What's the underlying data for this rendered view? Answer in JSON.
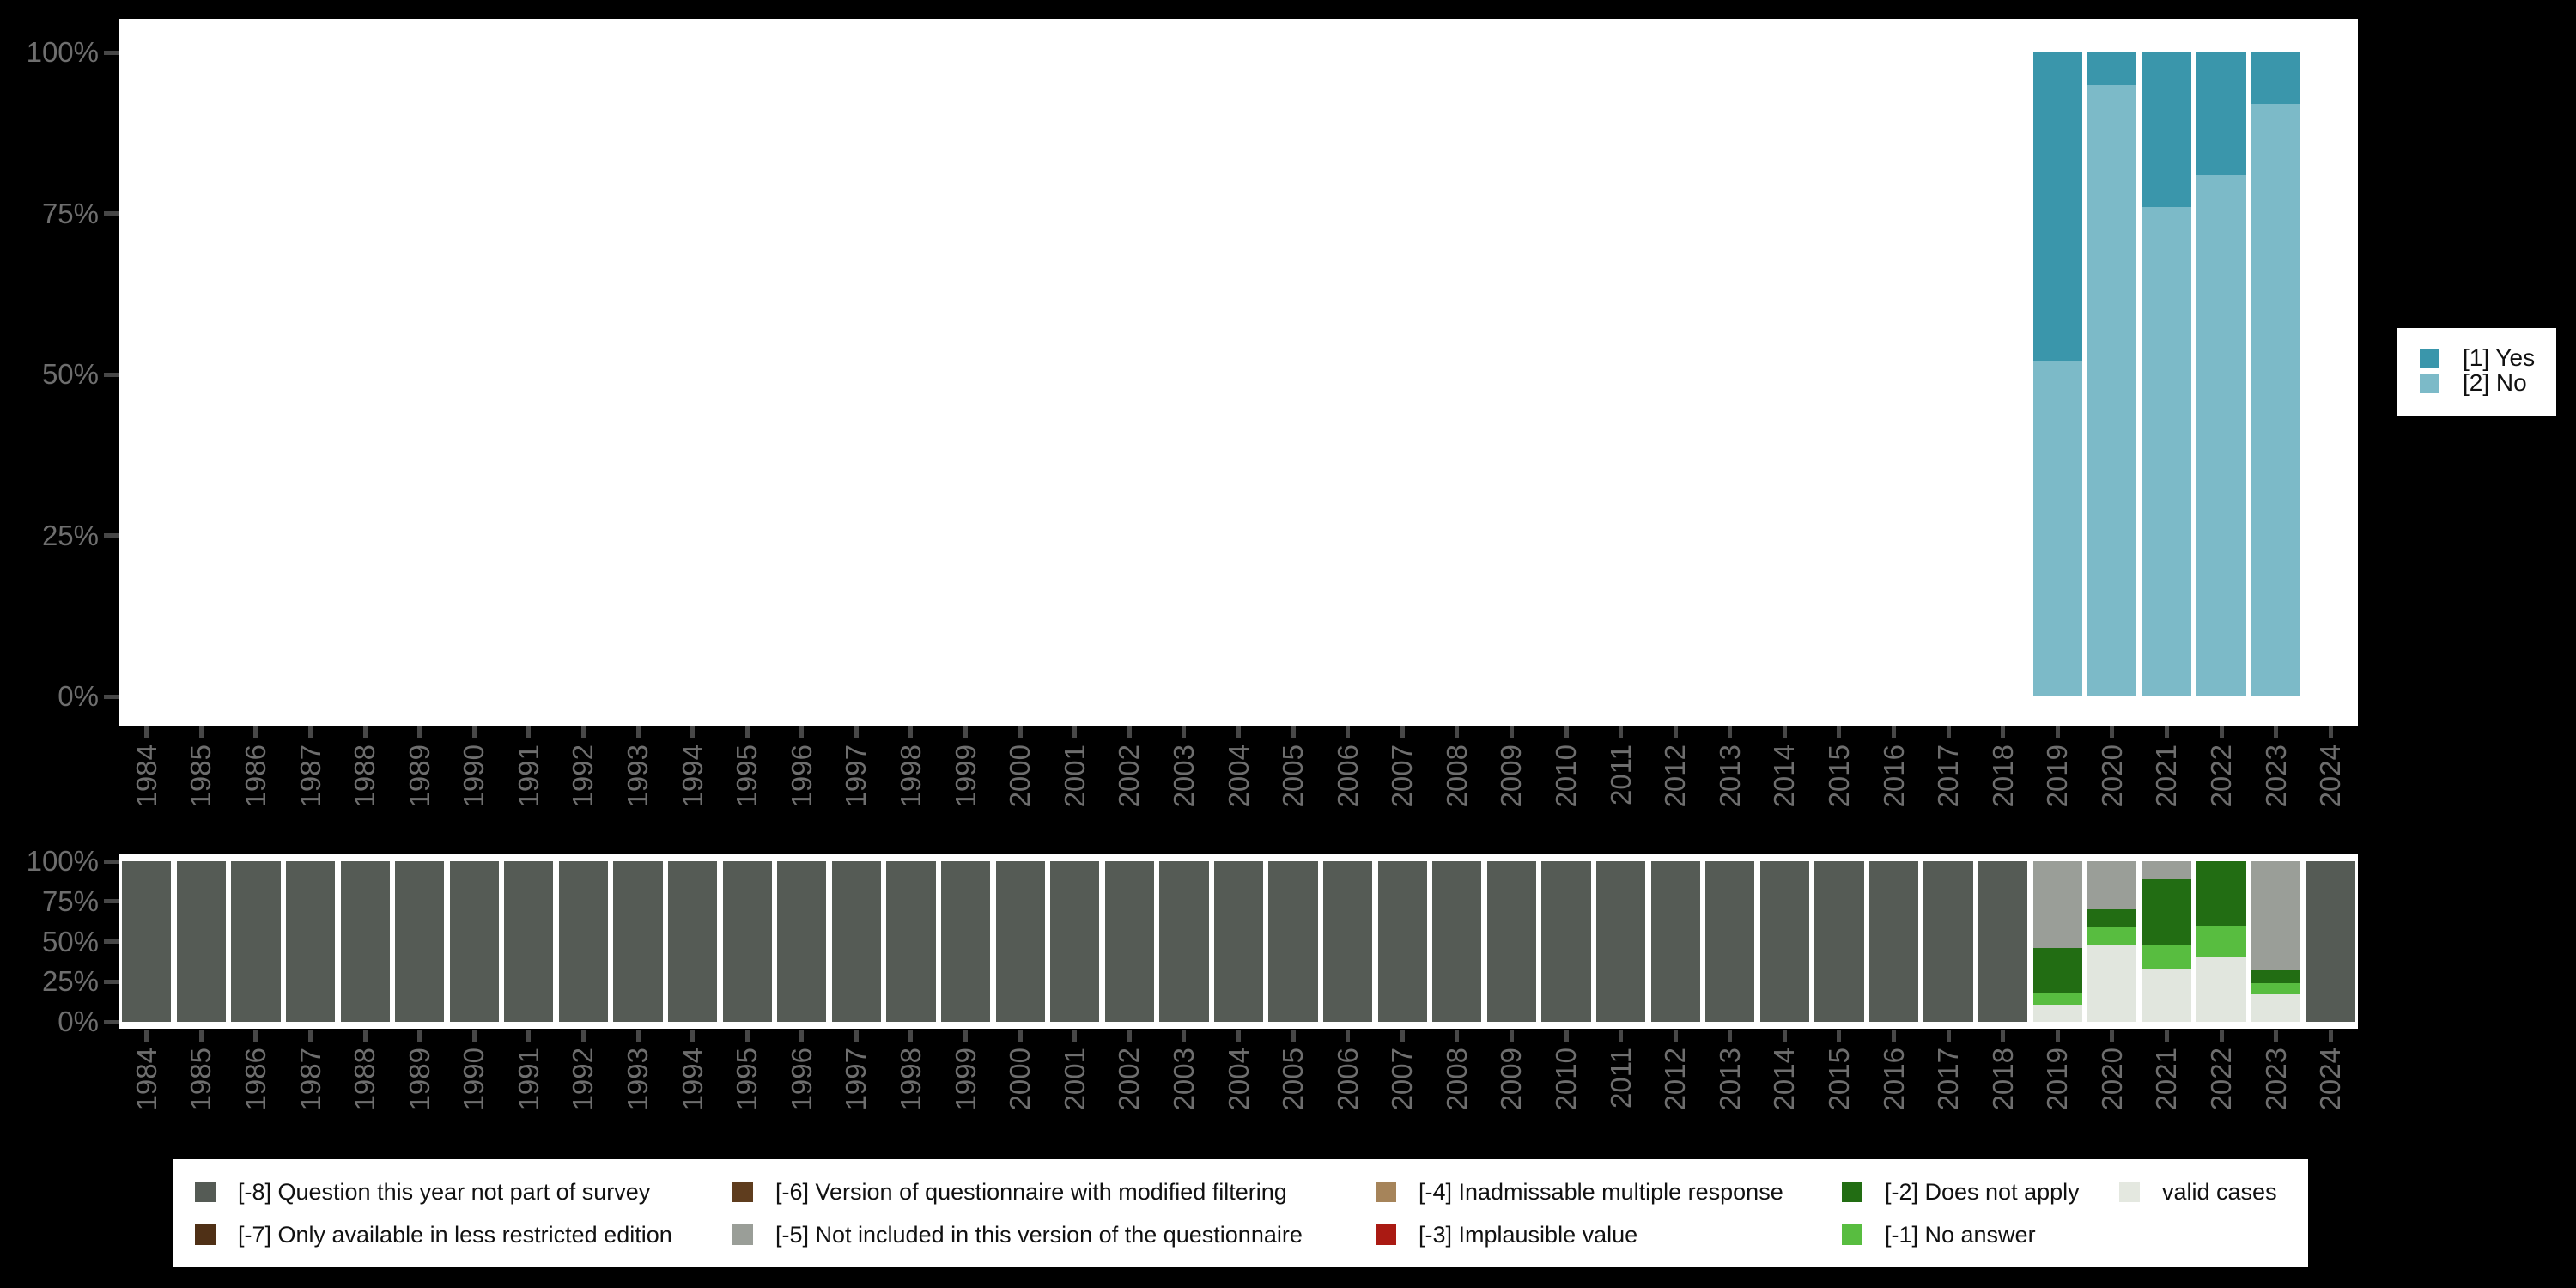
{
  "figure": {
    "background": "#000000",
    "panel_background": "#ffffff",
    "axis_text_color": "#6e6e6e",
    "tick_color": "#474747",
    "legend_background": "#ffffff",
    "legend_text_color": "#111111"
  },
  "years": [
    "1984",
    "1985",
    "1986",
    "1987",
    "1988",
    "1989",
    "1990",
    "1991",
    "1992",
    "1993",
    "1994",
    "1995",
    "1996",
    "1997",
    "1998",
    "1999",
    "2000",
    "2001",
    "2002",
    "2003",
    "2004",
    "2005",
    "2006",
    "2007",
    "2008",
    "2009",
    "2010",
    "2011",
    "2012",
    "2013",
    "2014",
    "2015",
    "2016",
    "2017",
    "2018",
    "2019",
    "2020",
    "2021",
    "2022",
    "2023",
    "2024"
  ],
  "y_axis": {
    "tick_labels": [
      "0%",
      "25%",
      "50%",
      "75%",
      "100%"
    ],
    "tick_values": [
      0,
      25,
      50,
      75,
      100
    ]
  },
  "chart_data": [
    {
      "id": "responses-by-year",
      "type": "bar",
      "stacked": true,
      "title": "",
      "xlabel": "",
      "ylabel": "",
      "ylim": [
        0,
        100
      ],
      "grid": false,
      "categories_from": "years",
      "series_bottom_to_top": [
        {
          "name": "[2] No",
          "color": "#7cbac8",
          "values": {
            "2019": 52,
            "2020": 95,
            "2021": 76,
            "2022": 81,
            "2023": 92
          }
        },
        {
          "name": "[1] Yes",
          "color": "#3a96ab",
          "values": {
            "2019": 48,
            "2020": 5,
            "2021": 24,
            "2022": 19,
            "2023": 8
          }
        }
      ],
      "legend": {
        "position": "right",
        "items": [
          {
            "label": "[1] Yes",
            "color": "#3a96ab"
          },
          {
            "label": "[2] No",
            "color": "#7cbac8"
          }
        ]
      }
    },
    {
      "id": "missing-values-by-year",
      "type": "bar",
      "stacked": true,
      "title": "",
      "xlabel": "",
      "ylabel": "",
      "ylim": [
        0,
        100
      ],
      "grid": false,
      "categories_from": "years",
      "series_bottom_to_top": [
        {
          "name": "valid cases",
          "color": "#e1e6de",
          "values": {
            "2019": 10,
            "2020": 48,
            "2021": 33,
            "2022": 40,
            "2023": 17
          }
        },
        {
          "name": "[-1] No answer",
          "color": "#58bd40",
          "values": {
            "2019": 8,
            "2020": 11,
            "2021": 15,
            "2022": 20,
            "2023": 7
          }
        },
        {
          "name": "[-2] Does not apply",
          "color": "#226d13",
          "values": {
            "2019": 28,
            "2020": 11,
            "2021": 41,
            "2022": 40,
            "2023": 8
          }
        },
        {
          "name": "[-5] Not included in this version of the questionnaire",
          "color": "#9a9e98",
          "values": {
            "2019": 54,
            "2020": 30,
            "2021": 11,
            "2023": 68
          }
        },
        {
          "name": "[-8] Question this year not part of survey",
          "color": "#555b55",
          "values": {
            "1984": 100,
            "1985": 100,
            "1986": 100,
            "1987": 100,
            "1988": 100,
            "1989": 100,
            "1990": 100,
            "1991": 100,
            "1992": 100,
            "1993": 100,
            "1994": 100,
            "1995": 100,
            "1996": 100,
            "1997": 100,
            "1998": 100,
            "1999": 100,
            "2000": 100,
            "2001": 100,
            "2002": 100,
            "2003": 100,
            "2004": 100,
            "2005": 100,
            "2006": 100,
            "2007": 100,
            "2008": 100,
            "2009": 100,
            "2010": 100,
            "2011": 100,
            "2012": 100,
            "2013": 100,
            "2014": 100,
            "2015": 100,
            "2016": 100,
            "2017": 100,
            "2018": 100,
            "2024": 100
          }
        }
      ],
      "legend": {
        "position": "bottom",
        "columns": [
          [
            {
              "label": "[-8] Question this year not part of survey",
              "color": "#555b55"
            },
            {
              "label": "[-7] Only available in less restricted edition",
              "color": "#4f3016"
            }
          ],
          [
            {
              "label": "[-6] Version of questionnaire with modified filtering",
              "color": "#5f3d1e"
            },
            {
              "label": "[-5] Not included in this version of the questionnaire",
              "color": "#9a9e98"
            }
          ],
          [
            {
              "label": "[-4] Inadmissable multiple response",
              "color": "#a6845a"
            },
            {
              "label": "[-3] Implausible value",
              "color": "#aa1a13"
            }
          ],
          [
            {
              "label": "[-2] Does not apply",
              "color": "#226d13"
            },
            {
              "label": "[-1] No answer",
              "color": "#58bd40"
            }
          ],
          [
            {
              "label": "valid cases",
              "color": "#e4e8e0"
            }
          ]
        ]
      }
    }
  ]
}
